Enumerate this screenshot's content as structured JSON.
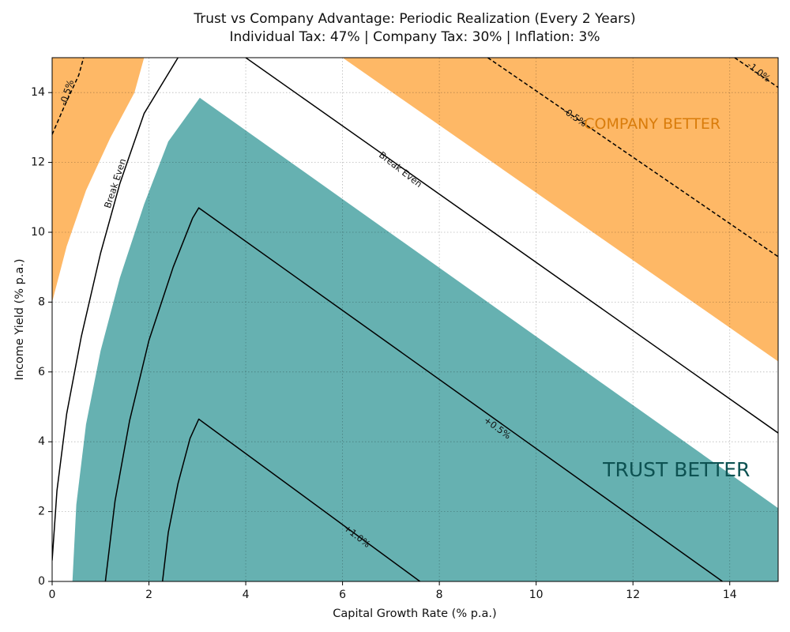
{
  "chart_data": {
    "type": "contour",
    "title": "Trust vs Company Advantage: Periodic Realization (Every 2 Years)",
    "subtitle": "Individual Tax: 47% | Company Tax: 30% | Inflation: 3%",
    "xlabel": "Capital Growth Rate (% p.a.)",
    "ylabel": "Income Yield (% p.a.)",
    "xlim": [
      0,
      15
    ],
    "ylim": [
      0,
      15
    ],
    "x_ticks": [
      0,
      2,
      4,
      6,
      8,
      10,
      12,
      14
    ],
    "y_ticks": [
      0,
      2,
      4,
      6,
      8,
      10,
      12,
      14
    ],
    "grid": true,
    "colors": {
      "trust_region": "#66b1b1",
      "company_region": "#feb866",
      "trust_label": "#0d5252",
      "company_label": "#d97c0b",
      "contour_line": "#000000"
    },
    "regions": [
      {
        "name": "TRUST BETTER",
        "label_at": {
          "x": 12.9,
          "y": 3.2
        },
        "boundary": [
          {
            "x": 0.42,
            "y": 0
          },
          {
            "x": 0.5,
            "y": 2.2
          },
          {
            "x": 0.7,
            "y": 4.5
          },
          {
            "x": 1.0,
            "y": 6.6
          },
          {
            "x": 1.4,
            "y": 8.7
          },
          {
            "x": 1.9,
            "y": 10.8
          },
          {
            "x": 2.4,
            "y": 12.6
          },
          {
            "x": 3.05,
            "y": 13.85
          },
          {
            "x": 15,
            "y": 2.1
          },
          {
            "x": 15,
            "y": 0
          }
        ]
      },
      {
        "name": "COMPANY BETTER",
        "label_at": {
          "x": 12.4,
          "y": 13.1
        },
        "boundary": [
          {
            "x": 6.0,
            "y": 15
          },
          {
            "x": 15,
            "y": 15
          },
          {
            "x": 15,
            "y": 6.3
          }
        ]
      },
      {
        "name": "",
        "boundary": [
          {
            "x": 0,
            "y": 8.0
          },
          {
            "x": 0.3,
            "y": 9.6
          },
          {
            "x": 0.7,
            "y": 11.2
          },
          {
            "x": 1.2,
            "y": 12.7
          },
          {
            "x": 1.7,
            "y": 14.0
          },
          {
            "x": 1.9,
            "y": 15
          },
          {
            "x": 0,
            "y": 15
          }
        ]
      }
    ],
    "contours": [
      {
        "label": "Break Even",
        "label_at": {
          "x": 1.3,
          "y": 11.4
        },
        "label_angle": -72,
        "dash": false,
        "points": [
          {
            "x": 0,
            "y": 0.6
          },
          {
            "x": 0.1,
            "y": 2.6
          },
          {
            "x": 0.3,
            "y": 4.8
          },
          {
            "x": 0.6,
            "y": 7.0
          },
          {
            "x": 1.0,
            "y": 9.4
          },
          {
            "x": 1.4,
            "y": 11.4
          },
          {
            "x": 1.9,
            "y": 13.4
          },
          {
            "x": 2.6,
            "y": 15
          }
        ]
      },
      {
        "label": "Break Even",
        "label_at": {
          "x": 7.2,
          "y": 11.8
        },
        "label_angle": 38,
        "dash": false,
        "points": [
          {
            "x": 4.0,
            "y": 15
          },
          {
            "x": 15,
            "y": 4.25
          }
        ]
      },
      {
        "label": "+0.5%",
        "label_at": {
          "x": 9.2,
          "y": 4.4
        },
        "label_angle": 36,
        "dash": false,
        "points": [
          {
            "x": 1.1,
            "y": 0
          },
          {
            "x": 1.3,
            "y": 2.3
          },
          {
            "x": 1.6,
            "y": 4.6
          },
          {
            "x": 2.0,
            "y": 6.9
          },
          {
            "x": 2.5,
            "y": 9.0
          },
          {
            "x": 2.9,
            "y": 10.4
          },
          {
            "x": 3.03,
            "y": 10.7
          },
          {
            "x": 13.85,
            "y": 0
          }
        ]
      },
      {
        "label": "+1.0%",
        "label_at": {
          "x": 6.3,
          "y": 1.3
        },
        "label_angle": 38,
        "dash": false,
        "points": [
          {
            "x": 2.28,
            "y": 0
          },
          {
            "x": 2.4,
            "y": 1.4
          },
          {
            "x": 2.6,
            "y": 2.8
          },
          {
            "x": 2.85,
            "y": 4.1
          },
          {
            "x": 3.03,
            "y": 4.65
          },
          {
            "x": 7.6,
            "y": 0
          }
        ]
      },
      {
        "label": "-0.5%",
        "label_at": {
          "x": 0.3,
          "y": 14.0
        },
        "label_angle": -72,
        "dash": true,
        "points": [
          {
            "x": 0,
            "y": 12.8
          },
          {
            "x": 0.25,
            "y": 13.6
          },
          {
            "x": 0.55,
            "y": 14.5
          },
          {
            "x": 0.65,
            "y": 15
          }
        ]
      },
      {
        "label": "-0.5%",
        "label_at": {
          "x": 10.8,
          "y": 13.3
        },
        "label_angle": 34,
        "dash": true,
        "points": [
          {
            "x": 9.0,
            "y": 15
          },
          {
            "x": 15,
            "y": 9.3
          }
        ]
      },
      {
        "label": "-1.0%",
        "label_at": {
          "x": 14.6,
          "y": 14.6
        },
        "label_angle": 38,
        "dash": true,
        "points": [
          {
            "x": 14.1,
            "y": 15
          },
          {
            "x": 15,
            "y": 14.15
          }
        ]
      }
    ]
  }
}
